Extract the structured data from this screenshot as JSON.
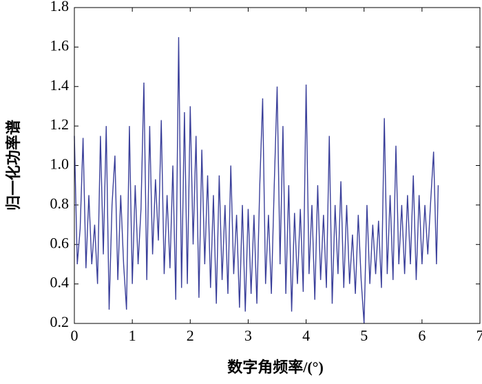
{
  "chart_data": {
    "type": "line",
    "xlabel": "数字角频率/(°)",
    "ylabel": "归一化功率谱",
    "color": "#3a3f9a",
    "x": [
      0,
      0.05,
      0.1,
      0.15,
      0.2,
      0.25,
      0.3,
      0.35,
      0.4,
      0.45,
      0.5,
      0.55,
      0.6,
      0.65,
      0.7,
      0.75,
      0.8,
      0.85,
      0.9,
      0.95,
      1,
      1.05,
      1.1,
      1.15,
      1.2,
      1.25,
      1.3,
      1.35,
      1.4,
      1.45,
      1.5,
      1.55,
      1.6,
      1.65,
      1.7,
      1.75,
      1.8,
      1.85,
      1.9,
      1.95,
      2,
      2.05,
      2.1,
      2.15,
      2.2,
      2.25,
      2.3,
      2.35,
      2.4,
      2.45,
      2.5,
      2.55,
      2.6,
      2.65,
      2.7,
      2.75,
      2.8,
      2.85,
      2.9,
      2.95,
      3,
      3.05,
      3.1,
      3.15,
      3.2,
      3.25,
      3.3,
      3.35,
      3.4,
      3.45,
      3.5,
      3.55,
      3.6,
      3.65,
      3.7,
      3.75,
      3.8,
      3.85,
      3.9,
      3.95,
      4,
      4.05,
      4.1,
      4.15,
      4.2,
      4.25,
      4.3,
      4.35,
      4.4,
      4.45,
      4.5,
      4.55,
      4.6,
      4.65,
      4.7,
      4.75,
      4.8,
      4.85,
      4.9,
      4.95,
      5,
      5.05,
      5.1,
      5.15,
      5.2,
      5.25,
      5.3,
      5.35,
      5.4,
      5.45,
      5.5,
      5.55,
      5.6,
      5.65,
      5.7,
      5.75,
      5.8,
      5.85,
      5.9,
      5.95,
      6,
      6.05,
      6.1,
      6.15,
      6.2,
      6.25,
      6.28
    ],
    "values": [
      1.15,
      0.5,
      0.68,
      1.14,
      0.48,
      0.85,
      0.5,
      0.7,
      0.4,
      1.15,
      0.55,
      1.2,
      0.27,
      0.8,
      1.05,
      0.42,
      0.85,
      0.5,
      0.27,
      1.2,
      0.4,
      0.9,
      0.5,
      0.78,
      1.42,
      0.42,
      1.2,
      0.55,
      0.93,
      0.62,
      1.23,
      0.45,
      0.85,
      0.48,
      1.0,
      0.32,
      1.65,
      0.38,
      1.27,
      0.4,
      1.3,
      0.6,
      1.15,
      0.33,
      1.08,
      0.5,
      0.95,
      0.38,
      0.85,
      0.3,
      0.95,
      0.42,
      0.8,
      0.35,
      1.0,
      0.45,
      0.75,
      0.28,
      0.8,
      0.26,
      0.78,
      0.35,
      0.75,
      0.3,
      0.9,
      1.34,
      0.4,
      0.75,
      0.35,
      0.9,
      1.4,
      0.5,
      1.2,
      0.35,
      0.9,
      0.26,
      0.76,
      0.4,
      0.78,
      0.36,
      1.41,
      0.45,
      0.8,
      0.32,
      0.9,
      0.42,
      0.75,
      0.38,
      1.15,
      0.3,
      0.8,
      0.45,
      0.92,
      0.38,
      0.8,
      0.4,
      0.65,
      0.35,
      0.75,
      0.42,
      0.2,
      0.8,
      0.4,
      0.7,
      0.45,
      0.72,
      0.38,
      1.24,
      0.45,
      0.85,
      0.42,
      1.1,
      0.5,
      0.8,
      0.45,
      0.85,
      0.5,
      0.95,
      0.42,
      0.85,
      0.5,
      0.8,
      0.55,
      0.82,
      1.07,
      0.5,
      0.9
    ],
    "xlim": [
      0,
      7
    ],
    "xticks": [
      0,
      1,
      2,
      3,
      4,
      5,
      6,
      7
    ],
    "ylim": [
      0.2,
      1.8
    ],
    "yticks": [
      0.2,
      0.4,
      0.6,
      0.8,
      {
        "value": 1,
        "label": "1.0"
      },
      1.2,
      1.4,
      1.6,
      1.8
    ]
  }
}
